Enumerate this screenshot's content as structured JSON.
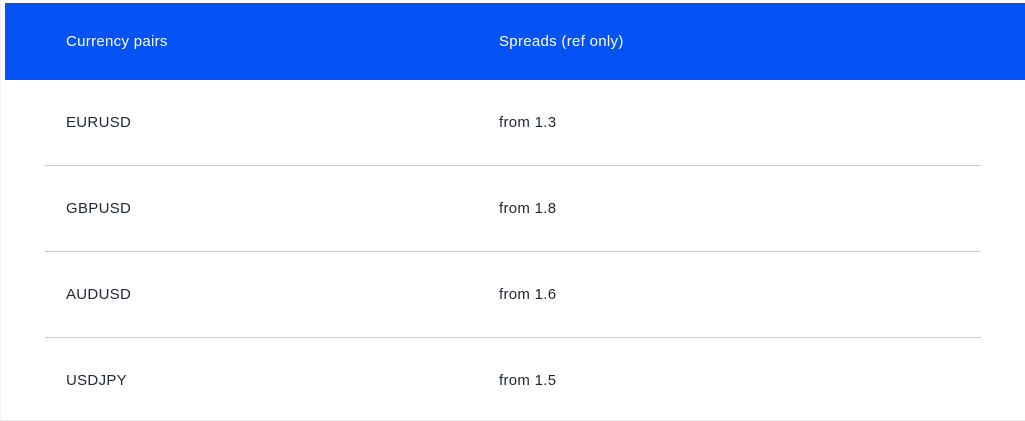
{
  "table": {
    "header": {
      "currency_pairs_label": "Currency pairs",
      "spreads_label": "Spreads (ref only)"
    },
    "rows": [
      {
        "pair": "EURUSD",
        "spread": "from 1.3"
      },
      {
        "pair": "GBPUSD",
        "spread": "from 1.8"
      },
      {
        "pair": "AUDUSD",
        "spread": "from 1.6"
      },
      {
        "pair": "USDJPY",
        "spread": "from 1.5"
      }
    ]
  },
  "colors": {
    "header_bg": "#0552f5",
    "header_text": "#ffffff",
    "row_text": "#222838",
    "divider": "#c9c9c9"
  }
}
